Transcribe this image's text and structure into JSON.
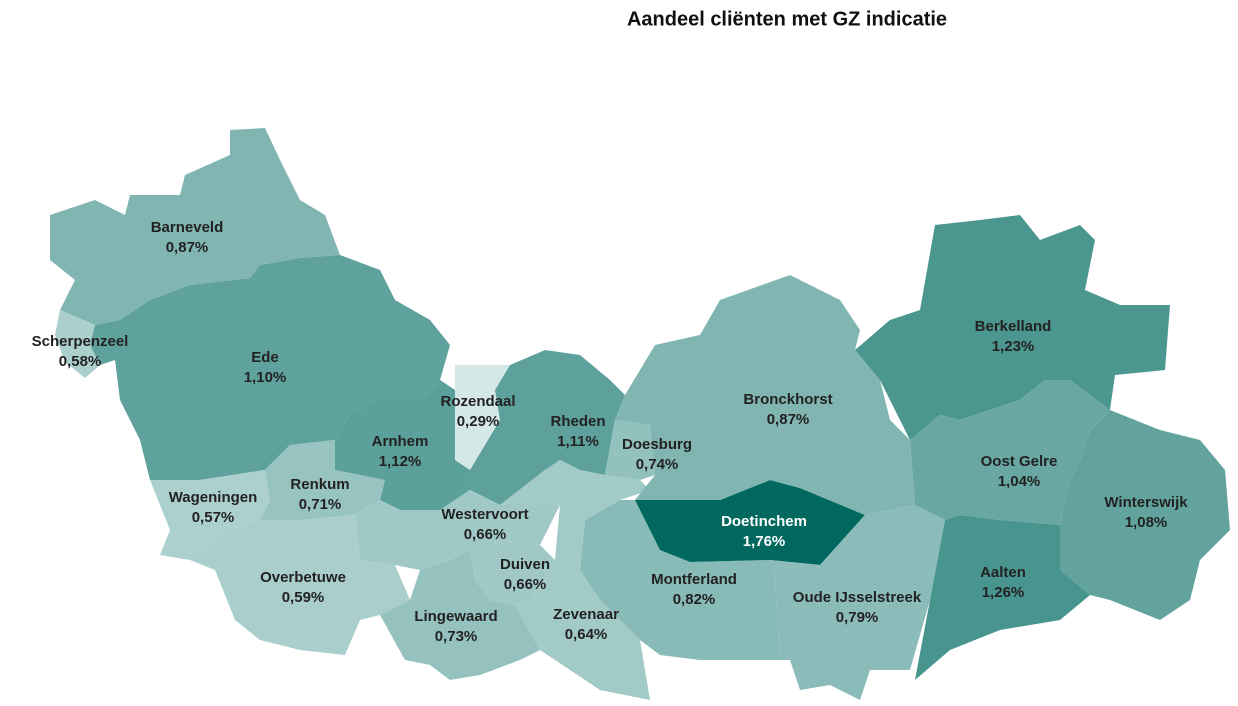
{
  "chart_data": {
    "type": "choropleth",
    "title": "Aandeel cliënten met GZ indicatie",
    "categories": [
      "Barneveld",
      "Scherpenzeel",
      "Ede",
      "Wageningen",
      "Renkum",
      "Rozendaal",
      "Arnhem",
      "Rheden",
      "Doesburg",
      "Westervoort",
      "Duiven",
      "Zevenaar",
      "Overbetuwe",
      "Lingewaard",
      "Montferland",
      "Doetinchem",
      "Bronckhorst",
      "Oude IJsselstreek",
      "Berkelland",
      "Oost Gelre",
      "Winterswijk",
      "Aalten"
    ],
    "values": [
      0.87,
      0.58,
      1.1,
      0.57,
      0.71,
      0.29,
      1.12,
      1.11,
      0.74,
      0.66,
      0.66,
      0.64,
      0.59,
      0.73,
      0.82,
      1.76,
      0.87,
      0.79,
      1.23,
      1.04,
      1.08,
      1.26
    ],
    "value_labels": [
      "0,87%",
      "0,58%",
      "1,10%",
      "0,57%",
      "0,71%",
      "0,29%",
      "1,12%",
      "1,11%",
      "0,74%",
      "0,66%",
      "0,66%",
      "0,64%",
      "0,59%",
      "0,73%",
      "0,82%",
      "1,76%",
      "0,87%",
      "0,79%",
      "1,23%",
      "1,04%",
      "1,08%",
      "1,26%"
    ],
    "color_low": "#d4e8e8",
    "color_high": "#00685f"
  }
}
